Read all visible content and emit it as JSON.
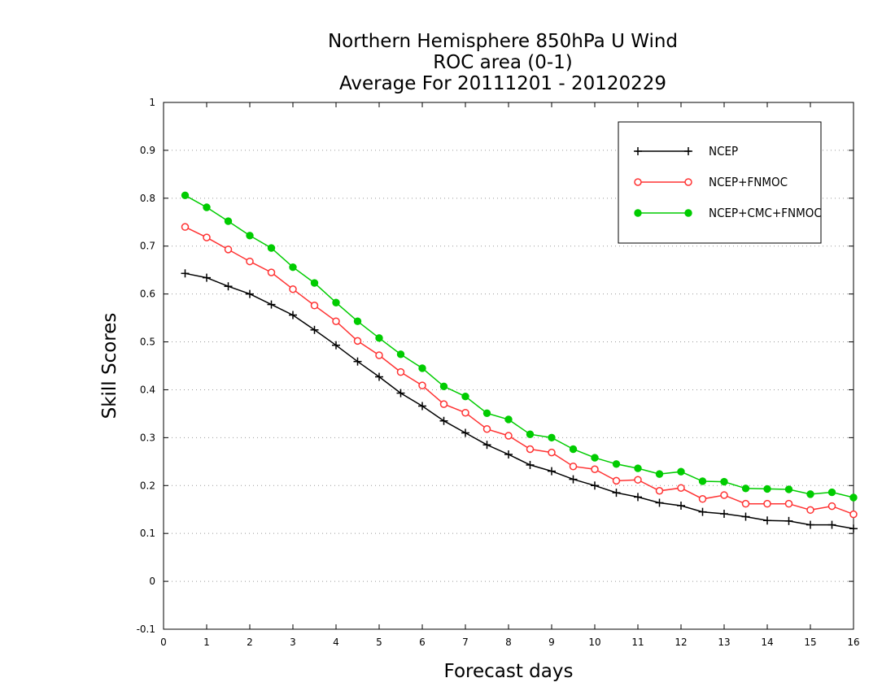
{
  "chart_data": {
    "type": "line",
    "title": [
      "Northern Hemisphere 850hPa U Wind",
      "ROC area (0-1)",
      "Average For 20111201 - 20120229"
    ],
    "xlabel": "Forecast days",
    "ylabel": "Skill Scores",
    "xlim": [
      0,
      16
    ],
    "ylim": [
      -0.1,
      1
    ],
    "xticks": [
      "0",
      "1",
      "2",
      "3",
      "4",
      "5",
      "6",
      "7",
      "8",
      "9",
      "10",
      "11",
      "12",
      "13",
      "14",
      "15",
      "16"
    ],
    "yticks": [
      "-0.1",
      "0",
      "0.1",
      "0.2",
      "0.3",
      "0.4",
      "0.5",
      "0.6",
      "0.7",
      "0.8",
      "0.9",
      "1"
    ],
    "grid": "horizontal dotted",
    "legend_position": "top-right",
    "x": [
      0.5,
      1,
      1.5,
      2,
      2.5,
      3,
      3.5,
      4,
      4.5,
      5,
      5.5,
      6,
      6.5,
      7,
      7.5,
      8,
      8.5,
      9,
      9.5,
      10,
      10.5,
      11,
      11.5,
      12,
      12.5,
      13,
      13.5,
      14,
      14.5,
      15,
      15.5,
      16
    ],
    "series": [
      {
        "name": "NCEP",
        "color": "#000000",
        "marker": "plus",
        "values": [
          0.643,
          0.634,
          0.616,
          0.6,
          0.578,
          0.556,
          0.525,
          0.493,
          0.459,
          0.427,
          0.393,
          0.366,
          0.335,
          0.31,
          0.285,
          0.265,
          0.243,
          0.23,
          0.213,
          0.2,
          0.185,
          0.176,
          0.164,
          0.158,
          0.145,
          0.141,
          0.135,
          0.127,
          0.126,
          0.118,
          0.118,
          0.11
        ]
      },
      {
        "name": "NCEP+FNMOC",
        "color": "#ff3333",
        "marker": "open-circle",
        "values": [
          0.74,
          0.718,
          0.693,
          0.668,
          0.645,
          0.61,
          0.576,
          0.543,
          0.502,
          0.472,
          0.437,
          0.409,
          0.37,
          0.352,
          0.318,
          0.304,
          0.276,
          0.269,
          0.24,
          0.234,
          0.21,
          0.212,
          0.189,
          0.195,
          0.172,
          0.18,
          0.162,
          0.162,
          0.162,
          0.149,
          0.157,
          0.14
        ]
      },
      {
        "name": "NCEP+CMC+FNMOC",
        "color": "#00cc00",
        "marker": "filled-circle",
        "values": [
          0.806,
          0.781,
          0.752,
          0.722,
          0.696,
          0.656,
          0.623,
          0.582,
          0.543,
          0.508,
          0.474,
          0.445,
          0.407,
          0.386,
          0.351,
          0.338,
          0.307,
          0.3,
          0.276,
          0.258,
          0.245,
          0.236,
          0.224,
          0.229,
          0.209,
          0.208,
          0.194,
          0.193,
          0.192,
          0.182,
          0.186,
          0.175
        ]
      }
    ]
  }
}
